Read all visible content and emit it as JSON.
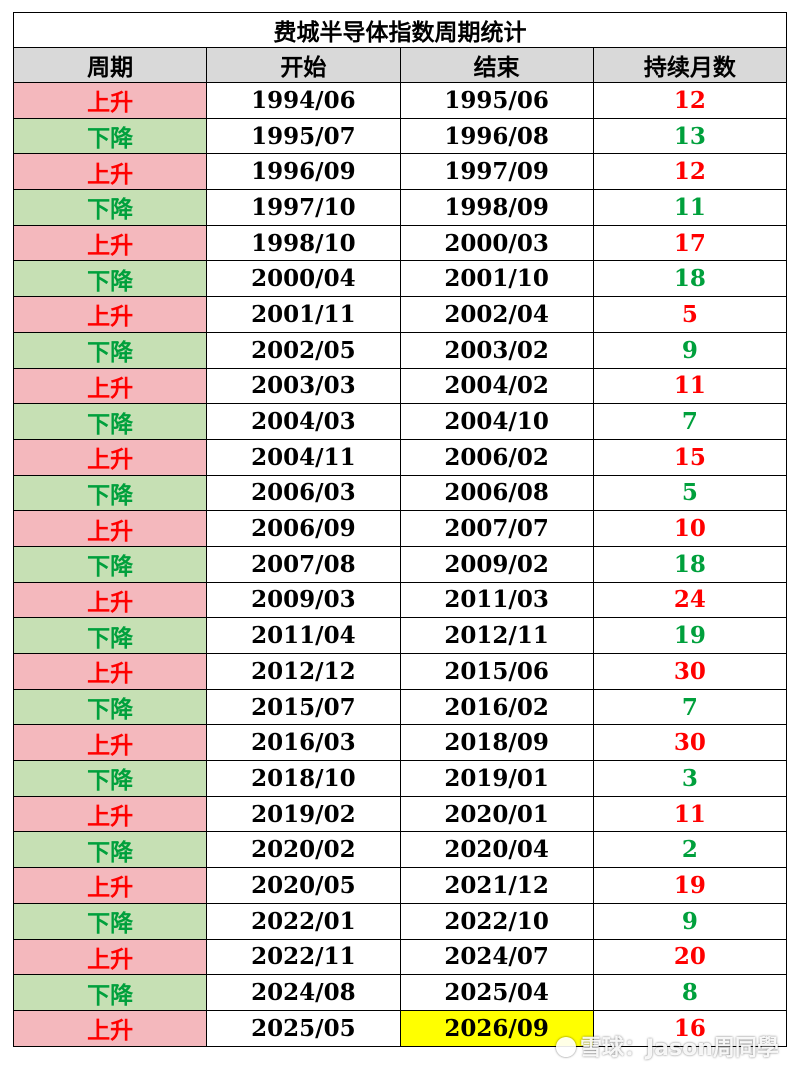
{
  "table": {
    "title": "费城半导体指数周期统计",
    "headers": [
      "周期",
      "开始",
      "结束",
      "持续月数"
    ],
    "rows": [
      {
        "phase": "上升",
        "start": "1994/06",
        "end": "1995/06",
        "months": "12"
      },
      {
        "phase": "下降",
        "start": "1995/07",
        "end": "1996/08",
        "months": "13"
      },
      {
        "phase": "上升",
        "start": "1996/09",
        "end": "1997/09",
        "months": "12"
      },
      {
        "phase": "下降",
        "start": "1997/10",
        "end": "1998/09",
        "months": "11"
      },
      {
        "phase": "上升",
        "start": "1998/10",
        "end": "2000/03",
        "months": "17"
      },
      {
        "phase": "下降",
        "start": "2000/04",
        "end": "2001/10",
        "months": "18"
      },
      {
        "phase": "上升",
        "start": "2001/11",
        "end": "2002/04",
        "months": "5"
      },
      {
        "phase": "下降",
        "start": "2002/05",
        "end": "2003/02",
        "months": "9"
      },
      {
        "phase": "上升",
        "start": "2003/03",
        "end": "2004/02",
        "months": "11"
      },
      {
        "phase": "下降",
        "start": "2004/03",
        "end": "2004/10",
        "months": "7"
      },
      {
        "phase": "上升",
        "start": "2004/11",
        "end": "2006/02",
        "months": "15"
      },
      {
        "phase": "下降",
        "start": "2006/03",
        "end": "2006/08",
        "months": "5"
      },
      {
        "phase": "上升",
        "start": "2006/09",
        "end": "2007/07",
        "months": "10"
      },
      {
        "phase": "下降",
        "start": "2007/08",
        "end": "2009/02",
        "months": "18"
      },
      {
        "phase": "上升",
        "start": "2009/03",
        "end": "2011/03",
        "months": "24"
      },
      {
        "phase": "下降",
        "start": "2011/04",
        "end": "2012/11",
        "months": "19"
      },
      {
        "phase": "上升",
        "start": "2012/12",
        "end": "2015/06",
        "months": "30"
      },
      {
        "phase": "下降",
        "start": "2015/07",
        "end": "2016/02",
        "months": "7"
      },
      {
        "phase": "上升",
        "start": "2016/03",
        "end": "2018/09",
        "months": "30"
      },
      {
        "phase": "下降",
        "start": "2018/10",
        "end": "2019/01",
        "months": "3"
      },
      {
        "phase": "上升",
        "start": "2019/02",
        "end": "2020/01",
        "months": "11"
      },
      {
        "phase": "下降",
        "start": "2020/02",
        "end": "2020/04",
        "months": "2"
      },
      {
        "phase": "上升",
        "start": "2020/05",
        "end": "2021/12",
        "months": "19"
      },
      {
        "phase": "下降",
        "start": "2022/01",
        "end": "2022/10",
        "months": "9"
      },
      {
        "phase": "上升",
        "start": "2022/11",
        "end": "2024/07",
        "months": "20"
      },
      {
        "phase": "下降",
        "start": "2024/08",
        "end": "2025/04",
        "months": "8"
      },
      {
        "phase": "上升",
        "start": "2025/05",
        "end": "2026/09",
        "months": "16",
        "highlight_end": true
      }
    ]
  },
  "colors": {
    "up_bg": "#f4b8bd",
    "up_text": "#ff0000",
    "down_bg": "#c6e0b4",
    "down_text": "#00a03c",
    "header_bg": "#d9d9d9",
    "highlight": "#ffff00"
  },
  "watermark": {
    "text": "雪球：Jason周同學",
    "icon": "snowball-logo-icon"
  }
}
